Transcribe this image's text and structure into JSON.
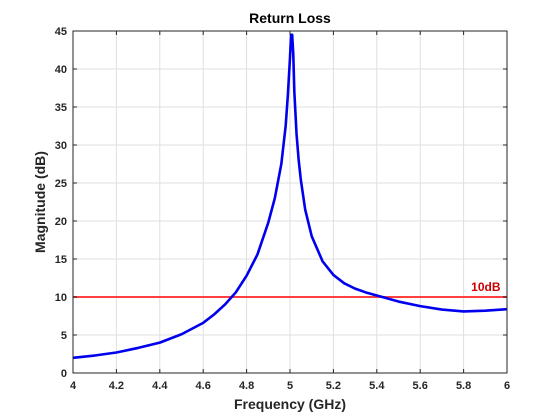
{
  "chart_data": {
    "type": "line",
    "title": "Return Loss",
    "xlabel": "Frequency (GHz)",
    "ylabel": "Magnitude (dB)",
    "xlim": [
      4,
      6
    ],
    "ylim": [
      0,
      45
    ],
    "x_ticks": [
      4,
      4.2,
      4.4,
      4.6,
      4.8,
      5,
      5.2,
      5.4,
      5.6,
      5.8,
      6
    ],
    "x_tick_labels": [
      "4",
      "4.2",
      "4.4",
      "4.6",
      "4.8",
      "5",
      "5.2",
      "5.4",
      "5.6",
      "5.8",
      "6"
    ],
    "y_ticks": [
      0,
      5,
      10,
      15,
      20,
      25,
      30,
      35,
      40,
      45
    ],
    "y_tick_labels": [
      "0",
      "5",
      "10",
      "15",
      "20",
      "25",
      "30",
      "35",
      "40",
      "45"
    ],
    "grid": true,
    "series": [
      {
        "color": "#0000ee",
        "x": [
          4.0,
          4.1,
          4.2,
          4.3,
          4.4,
          4.5,
          4.6,
          4.65,
          4.7,
          4.75,
          4.8,
          4.85,
          4.9,
          4.93,
          4.96,
          4.98,
          4.99,
          5.0,
          5.005,
          5.01,
          5.015,
          5.02,
          5.03,
          5.04,
          5.05,
          5.07,
          5.1,
          5.15,
          5.2,
          5.25,
          5.3,
          5.35,
          5.4,
          5.45,
          5.5,
          5.6,
          5.7,
          5.8,
          5.85,
          5.9,
          6.0
        ],
        "y": [
          2.0,
          2.3,
          2.7,
          3.3,
          4.0,
          5.1,
          6.6,
          7.7,
          9.0,
          10.6,
          12.8,
          15.6,
          19.8,
          23.0,
          27.5,
          32.5,
          36.5,
          41.5,
          44.5,
          44.5,
          42.0,
          37.0,
          31.5,
          28.0,
          25.4,
          21.5,
          18.0,
          14.7,
          12.9,
          11.8,
          11.1,
          10.6,
          10.2,
          9.8,
          9.4,
          8.8,
          8.35,
          8.1,
          8.15,
          8.2,
          8.4
        ]
      },
      {
        "color": "#ff4040",
        "x": [
          4,
          6
        ],
        "y": [
          10,
          10
        ]
      }
    ],
    "annotations": [
      {
        "text": "10dB",
        "x": 5.97,
        "y": 10,
        "color": "#cc0000"
      }
    ]
  }
}
